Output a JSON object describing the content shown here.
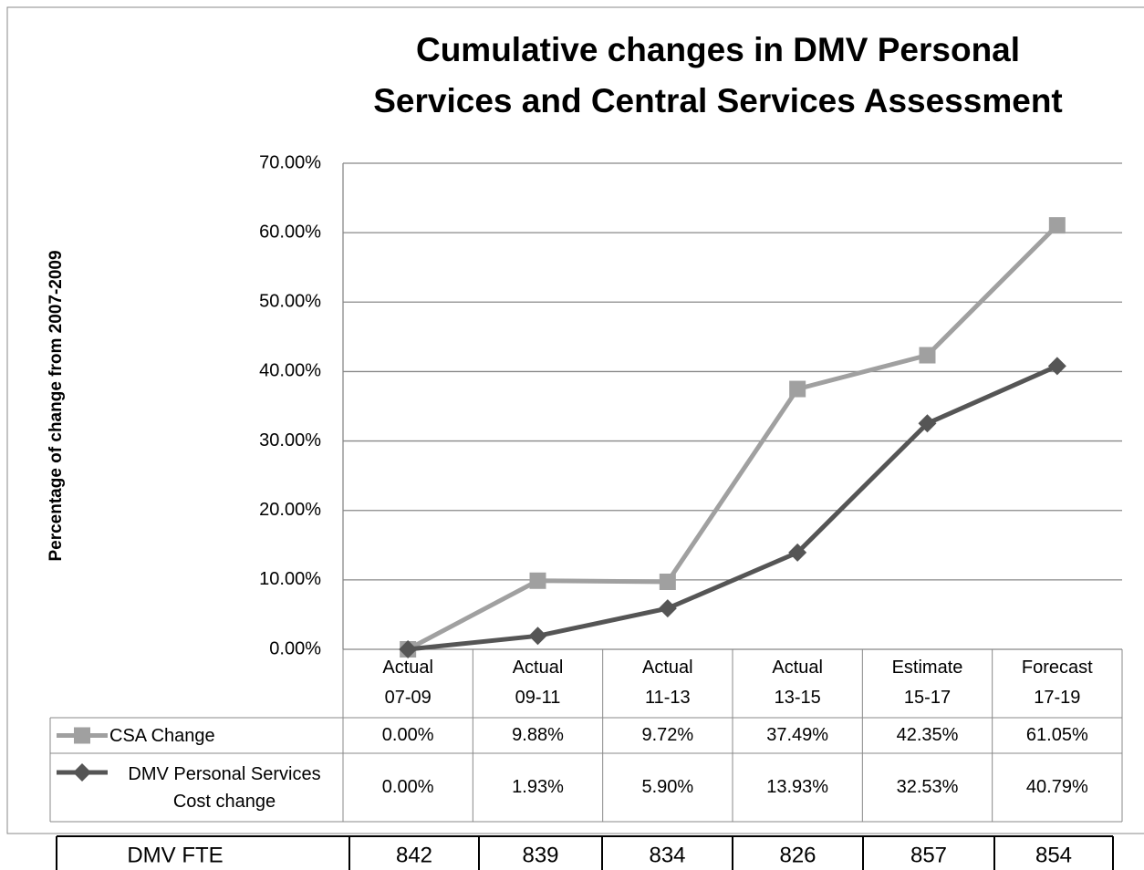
{
  "chart_data": {
    "type": "line",
    "title": "Cumulative changes in DMV Personal Services and Central Services Assessment",
    "y_axis_label": "Percentage of change from 2007-2009",
    "categories": [
      "Actual 07-09",
      "Actual 09-11",
      "Actual 11-13",
      "Actual 13-15",
      "Estimate 15-17",
      "Forecast 17-19"
    ],
    "series": [
      {
        "name": "CSA Change",
        "color": "#a0a0a0",
        "marker": "square",
        "values": [
          0,
          9.88,
          9.72,
          37.49,
          42.35,
          61.05
        ],
        "value_labels": [
          "0.00%",
          "9.88%",
          "9.72%",
          "37.49%",
          "42.35%",
          "61.05%"
        ]
      },
      {
        "name": "DMV Personal Services Cost change",
        "color": "#555555",
        "marker": "diamond",
        "values": [
          0,
          1.93,
          5.9,
          13.93,
          32.53,
          40.79
        ],
        "value_labels": [
          "0.00%",
          "1.93%",
          "5.90%",
          "13.93%",
          "32.53%",
          "40.79%"
        ]
      }
    ],
    "ylim": [
      0,
      70
    ],
    "yticks": [
      {
        "value": 0,
        "label": "0.00%"
      },
      {
        "value": 10,
        "label": "10.00%"
      },
      {
        "value": 20,
        "label": "20.00%"
      },
      {
        "value": 30,
        "label": "30.00%"
      },
      {
        "value": 40,
        "label": "40.00%"
      },
      {
        "value": 50,
        "label": "50.00%"
      },
      {
        "value": 60,
        "label": "60.00%"
      },
      {
        "value": 70,
        "label": "70.00%"
      }
    ],
    "grid": true,
    "fte_table": {
      "label": "DMV FTE",
      "values": [
        842,
        839,
        834,
        826,
        857,
        854
      ]
    }
  }
}
